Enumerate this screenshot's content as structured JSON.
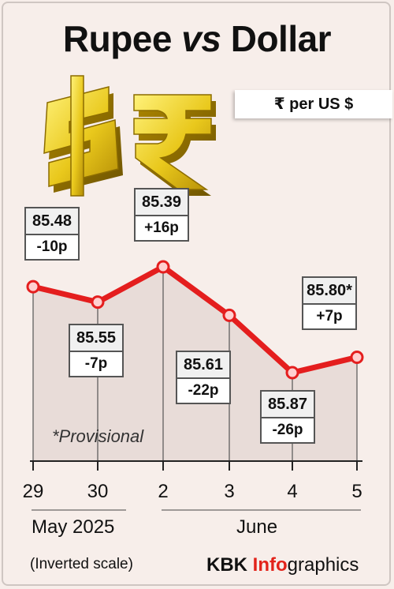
{
  "header": {
    "title_part1": "Rupee",
    "title_vs": "vs",
    "title_part2": "Dollar",
    "unit_label": "₹ per US $"
  },
  "chart_data": {
    "type": "line",
    "title": "Rupee vs Dollar",
    "ylabel": "₹ per US $",
    "y_inverted": true,
    "ylim": [
      85.45,
      85.85
    ],
    "x": [
      "29",
      "30",
      "2",
      "3",
      "4",
      "5"
    ],
    "values": [
      85.48,
      85.55,
      85.39,
      85.61,
      85.87,
      85.8
    ],
    "value_labels": [
      "85.48",
      "85.55",
      "85.39",
      "85.61",
      "85.87",
      "85.80*"
    ],
    "change_labels": [
      "-10p",
      "-7p",
      "+16p",
      "-22p",
      "-26p",
      "+7p"
    ],
    "month_groups": [
      "May 2025",
      "June"
    ],
    "note": "*Provisional",
    "scale_note": "(Inverted scale)",
    "line_color": "#e41e1e",
    "marker_color": "#ffd0d0"
  },
  "footer": {
    "credit_bold": "KBK",
    "credit_red": "Info",
    "credit_rest": "graphics"
  }
}
